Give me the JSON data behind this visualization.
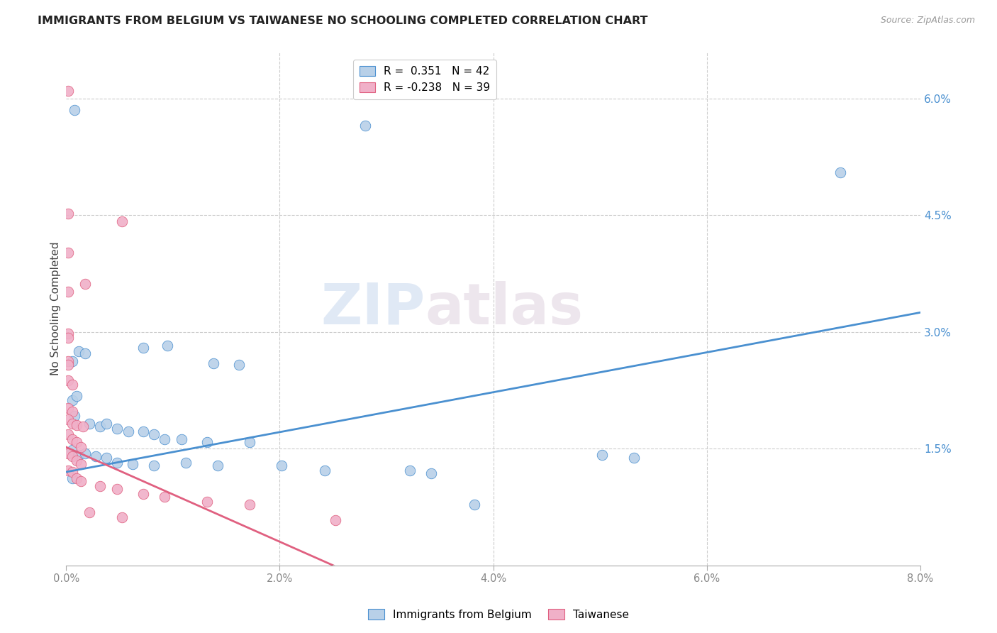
{
  "title": "IMMIGRANTS FROM BELGIUM VS TAIWANESE NO SCHOOLING COMPLETED CORRELATION CHART",
  "source": "Source: ZipAtlas.com",
  "ylabel": "No Schooling Completed",
  "right_ytick_vals": [
    1.5,
    3.0,
    4.5,
    6.0
  ],
  "xmin": 0.0,
  "xmax": 8.0,
  "ymin": 0.0,
  "ymax": 6.6,
  "legend_blue_r": "0.351",
  "legend_blue_n": "42",
  "legend_pink_r": "-0.238",
  "legend_pink_n": "39",
  "blue_color": "#b8d0e8",
  "blue_line_color": "#4a90d0",
  "pink_color": "#f0b0c8",
  "pink_line_color": "#e06080",
  "watermark_zip": "ZIP",
  "watermark_atlas": "atlas",
  "blue_line": [
    0.0,
    1.2,
    8.0,
    3.25
  ],
  "pink_line": [
    0.0,
    1.52,
    2.5,
    0.0
  ],
  "blue_scatter": [
    [
      0.08,
      5.85
    ],
    [
      2.8,
      5.65
    ],
    [
      7.25,
      5.05
    ],
    [
      0.12,
      2.75
    ],
    [
      0.72,
      2.8
    ],
    [
      0.95,
      2.82
    ],
    [
      1.38,
      2.6
    ],
    [
      1.62,
      2.58
    ],
    [
      0.06,
      2.12
    ],
    [
      0.1,
      2.18
    ],
    [
      0.08,
      1.92
    ],
    [
      0.22,
      1.82
    ],
    [
      0.32,
      1.78
    ],
    [
      0.38,
      1.82
    ],
    [
      0.48,
      1.76
    ],
    [
      0.58,
      1.72
    ],
    [
      0.72,
      1.72
    ],
    [
      0.82,
      1.68
    ],
    [
      0.92,
      1.62
    ],
    [
      1.08,
      1.62
    ],
    [
      1.32,
      1.58
    ],
    [
      1.72,
      1.58
    ],
    [
      0.06,
      1.48
    ],
    [
      0.12,
      1.42
    ],
    [
      0.18,
      1.44
    ],
    [
      0.28,
      1.4
    ],
    [
      0.38,
      1.38
    ],
    [
      0.48,
      1.32
    ],
    [
      0.62,
      1.3
    ],
    [
      0.82,
      1.28
    ],
    [
      1.12,
      1.32
    ],
    [
      1.42,
      1.28
    ],
    [
      2.02,
      1.28
    ],
    [
      2.42,
      1.22
    ],
    [
      3.22,
      1.22
    ],
    [
      3.42,
      1.18
    ],
    [
      5.02,
      1.42
    ],
    [
      5.32,
      1.38
    ],
    [
      3.82,
      0.78
    ],
    [
      0.06,
      2.62
    ],
    [
      0.18,
      2.72
    ],
    [
      0.06,
      1.12
    ]
  ],
  "pink_scatter": [
    [
      0.02,
      6.1
    ],
    [
      0.02,
      4.52
    ],
    [
      0.52,
      4.42
    ],
    [
      0.02,
      4.02
    ],
    [
      0.18,
      3.62
    ],
    [
      0.02,
      3.52
    ],
    [
      0.02,
      2.98
    ],
    [
      0.02,
      2.92
    ],
    [
      0.02,
      2.62
    ],
    [
      0.02,
      2.58
    ],
    [
      0.02,
      2.38
    ],
    [
      0.06,
      2.32
    ],
    [
      0.02,
      2.02
    ],
    [
      0.06,
      1.98
    ],
    [
      0.02,
      1.88
    ],
    [
      0.06,
      1.82
    ],
    [
      0.1,
      1.8
    ],
    [
      0.16,
      1.78
    ],
    [
      0.02,
      1.68
    ],
    [
      0.06,
      1.62
    ],
    [
      0.1,
      1.58
    ],
    [
      0.14,
      1.52
    ],
    [
      0.02,
      1.44
    ],
    [
      0.06,
      1.4
    ],
    [
      0.1,
      1.35
    ],
    [
      0.14,
      1.3
    ],
    [
      0.02,
      1.22
    ],
    [
      0.06,
      1.2
    ],
    [
      0.1,
      1.12
    ],
    [
      0.14,
      1.08
    ],
    [
      0.32,
      1.02
    ],
    [
      0.48,
      0.98
    ],
    [
      0.72,
      0.92
    ],
    [
      0.92,
      0.88
    ],
    [
      1.32,
      0.82
    ],
    [
      1.72,
      0.78
    ],
    [
      0.22,
      0.68
    ],
    [
      0.52,
      0.62
    ],
    [
      2.52,
      0.58
    ]
  ]
}
